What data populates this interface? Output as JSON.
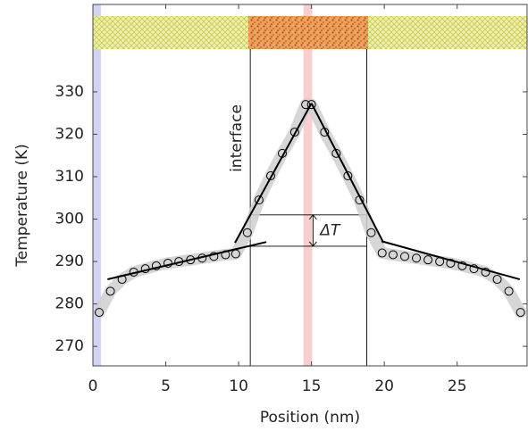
{
  "chart_data": {
    "type": "scatter",
    "xlabel": "Position (nm)",
    "ylabel": "Temperature (K)",
    "x": [
      0.43,
      1.2,
      2.0,
      2.8,
      3.6,
      4.35,
      5.15,
      5.9,
      6.7,
      7.5,
      8.3,
      9.1,
      9.8,
      10.6,
      11.4,
      12.2,
      13.0,
      13.85,
      14.6,
      15.0,
      15.9,
      16.7,
      17.5,
      18.3,
      19.1,
      19.85,
      20.6,
      21.4,
      22.2,
      23.0,
      23.8,
      24.55,
      25.35,
      26.15,
      26.95,
      27.75,
      28.55,
      29.35
    ],
    "values": [
      278,
      283,
      285.8,
      287.5,
      288.3,
      289,
      289.6,
      290,
      290.4,
      290.8,
      291.2,
      291.6,
      291.8,
      296.8,
      304.5,
      310.2,
      315.5,
      320.5,
      327,
      327,
      320.5,
      315.5,
      310.2,
      304.5,
      296.8,
      292,
      291.6,
      291.2,
      290.8,
      290.4,
      290,
      289.6,
      289,
      288.3,
      287.5,
      285.8,
      283,
      278
    ],
    "color": "#000000",
    "fit_lines": [
      {
        "x": [
          1.0,
          11.9
        ],
        "values": [
          285.8,
          294.6
        ]
      },
      {
        "x": [
          9.75,
          15.0
        ],
        "values": [
          294.4,
          327.3
        ]
      },
      {
        "x": [
          15.0,
          19.95
        ],
        "values": [
          327.3,
          294.4
        ]
      },
      {
        "x": [
          19.8,
          29.3
        ],
        "values": [
          294.8,
          285.8
        ]
      }
    ],
    "interface_x": [
      10.8,
      18.8
    ],
    "delta_t_levels": [
      293.6,
      301
    ],
    "bands": [
      {
        "xlim": [
          0,
          0.55
        ],
        "color": "#c8c8f4"
      },
      {
        "xlim": [
          14.45,
          15.05
        ],
        "color": "#f6c2c2"
      }
    ],
    "annotations": [
      "interface",
      "ΔT"
    ],
    "xlim": [
      0,
      29.8
    ],
    "ylim": [
      265.4,
      350.6
    ],
    "xticks": [
      0,
      5,
      10,
      15,
      20,
      25
    ],
    "yticks": [
      270,
      280,
      290,
      300,
      310,
      320,
      330
    ]
  }
}
